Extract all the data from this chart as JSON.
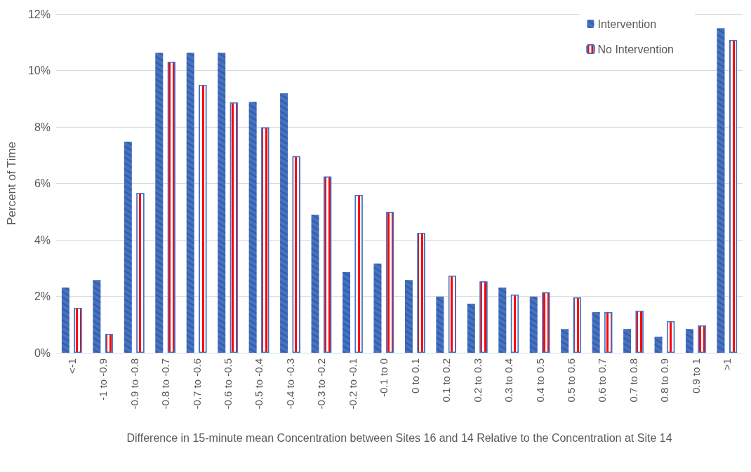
{
  "chart_data": {
    "type": "bar",
    "xlabel": "Difference in 15-minute mean Concentration between Sites 16 and 14 Relative to the Concentration at Site 14",
    "ylabel": "Percent of Time",
    "categories": [
      "<-1",
      "-1 to -0.9",
      "-0.9 to -0.8",
      "-0.8 to -0.7",
      "-0.7 to -0.6",
      "-0.6 to -0.5",
      "-0.5 to -0.4",
      "-0.4 to -0.3",
      "-0.3 to -0.2",
      "-0.2 to -0.1",
      "-0.1 to 0",
      "0 to 0.1",
      "0.1 to 0.2",
      "0.2 to 0.3",
      "0.3 to 0.4",
      "0.4 to 0.5",
      "0.5 to 0.6",
      "0.6 to 0.7",
      "0.7 to 0.8",
      "0.8 to 0.9",
      "0.9 to 1",
      ">1"
    ],
    "series": [
      {
        "name": "Intervention",
        "color": "#4472c4",
        "values": [
          2.31,
          2.58,
          7.48,
          10.63,
          10.63,
          10.63,
          8.89,
          9.19,
          4.89,
          2.86,
          3.16,
          2.58,
          1.99,
          1.74,
          2.31,
          1.99,
          0.84,
          1.44,
          0.84,
          0.57,
          0.84,
          11.5
        ]
      },
      {
        "name": "No Intervention",
        "color": "#ff0000",
        "values": [
          1.59,
          0.67,
          5.66,
          10.31,
          9.49,
          8.87,
          7.98,
          6.96,
          6.24,
          5.59,
          4.99,
          4.25,
          2.73,
          2.53,
          2.06,
          2.14,
          1.96,
          1.44,
          1.49,
          1.12,
          0.97,
          11.08
        ]
      }
    ],
    "ylim": [
      0,
      12
    ],
    "yticks": [
      {
        "value": 0,
        "label": "0%"
      },
      {
        "value": 2,
        "label": "2%"
      },
      {
        "value": 4,
        "label": "4%"
      },
      {
        "value": 6,
        "label": "6%"
      },
      {
        "value": 8,
        "label": "8%"
      },
      {
        "value": 10,
        "label": "10%"
      },
      {
        "value": 12,
        "label": "12%"
      }
    ],
    "grid": "y",
    "legend": "top right"
  }
}
